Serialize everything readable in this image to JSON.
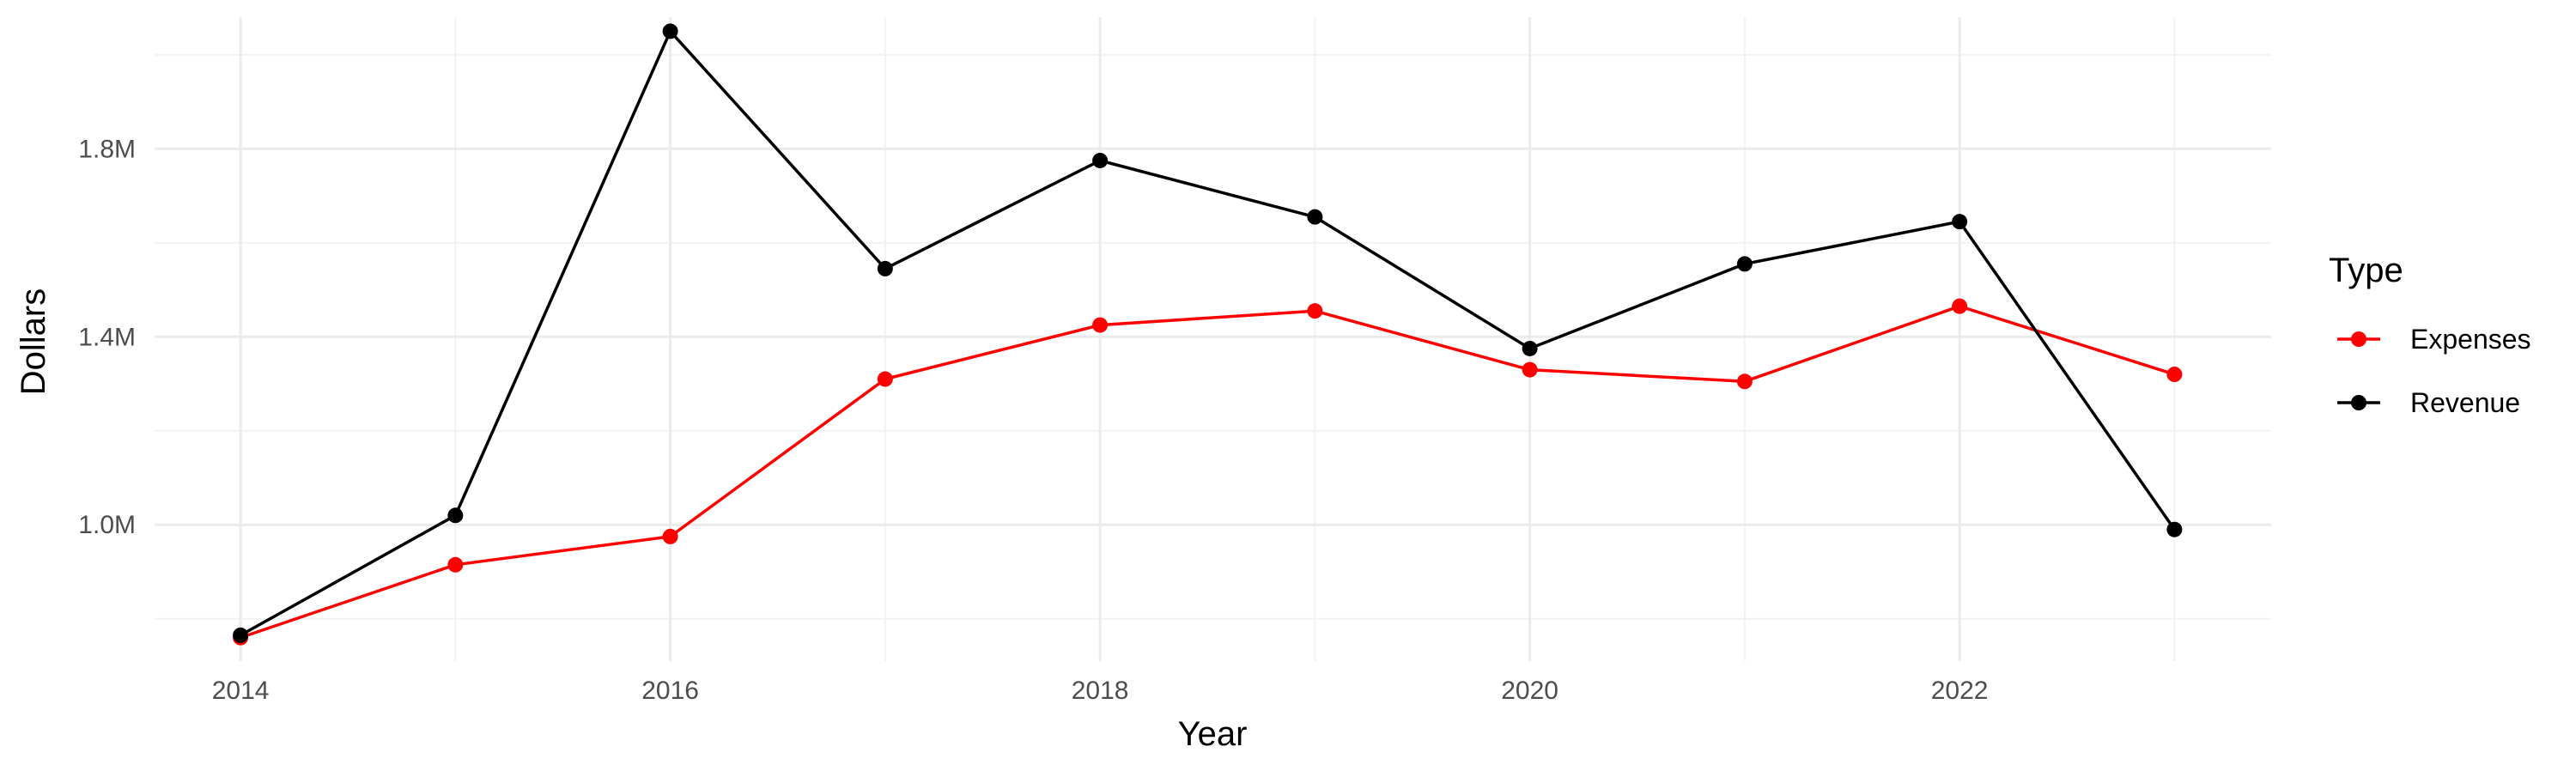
{
  "chart_data": {
    "type": "line",
    "xlabel": "Year",
    "ylabel": "Dollars",
    "x": [
      2014,
      2015,
      2016,
      2017,
      2018,
      2019,
      2020,
      2021,
      2022,
      2023
    ],
    "xlim": [
      2013.6,
      2023.45
    ],
    "ylim": [
      0.71,
      2.08
    ],
    "x_ticks": [
      2014,
      2016,
      2018,
      2020,
      2022
    ],
    "x_tick_labels": [
      "2014",
      "2016",
      "2018",
      "2020",
      "2022"
    ],
    "y_ticks": [
      1.0,
      1.4,
      1.8
    ],
    "y_tick_labels": [
      "1.0M",
      "1.4M",
      "1.8M"
    ],
    "y_unit": "millions of dollars",
    "grid": true,
    "legend": {
      "title": "Type",
      "position": "right",
      "entries": [
        "Expenses",
        "Revenue"
      ]
    },
    "series": [
      {
        "name": "Expenses",
        "color": "#ff0000",
        "values": [
          0.76,
          0.915,
          0.975,
          1.31,
          1.425,
          1.455,
          1.33,
          1.305,
          1.465,
          1.32
        ]
      },
      {
        "name": "Revenue",
        "color": "#000000",
        "values": [
          0.765,
          1.02,
          2.05,
          1.545,
          1.775,
          1.655,
          1.375,
          1.555,
          1.645,
          0.99
        ]
      }
    ]
  }
}
